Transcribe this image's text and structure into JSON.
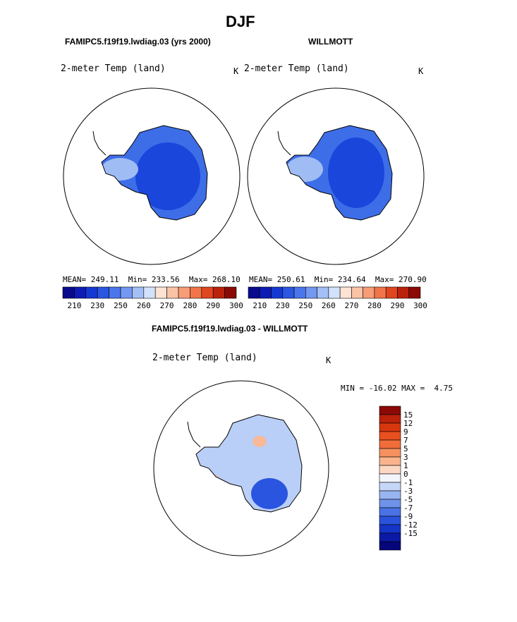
{
  "season": "DJF",
  "panels": {
    "model": {
      "title": "FAMIPC5.f19f19.lwdiag.03 (yrs 2000)",
      "variable": "2-meter Temp (land)",
      "units": "K",
      "stats": {
        "mean_label": "MEAN=",
        "mean": "249.11",
        "min_label": "Min=",
        "min": "233.56",
        "max_label": "Max=",
        "max": "268.10"
      }
    },
    "obs": {
      "title": "WILLMOTT",
      "variable": "2-meter Temp (land)",
      "units": "K",
      "stats": {
        "mean_label": "MEAN=",
        "mean": "250.61",
        "min_label": "Min=",
        "min": "234.64",
        "max_label": "Max=",
        "max": "270.90"
      }
    },
    "diff": {
      "title": "FAMIPC5.f19f19.lwdiag.03 - WILLMOTT",
      "variable": "2-meter Temp (land)",
      "units": "K",
      "stats": {
        "min_label": "MIN =",
        "min": "-16.02",
        "max_label": "MAX =",
        "max": "4.75"
      }
    }
  },
  "colorbar_abs": {
    "colors": [
      "#0a0a8c",
      "#0d1cb4",
      "#1638d2",
      "#2a56e2",
      "#4a76ec",
      "#7398f2",
      "#a3bff6",
      "#d2e2fa",
      "#fde3d3",
      "#fbc3a6",
      "#f79d77",
      "#f17548",
      "#e0461f",
      "#bb220c",
      "#8b0a05"
    ],
    "ticks": [
      "210",
      "230",
      "250",
      "260",
      "270",
      "280",
      "290",
      "300"
    ]
  },
  "colorbar_diff": {
    "colors": [
      "#8b0a05",
      "#bb220c",
      "#d7370f",
      "#e9501f",
      "#f06d3a",
      "#f5925f",
      "#f9b48e",
      "#fcd8c4",
      "#f2f5fb",
      "#c6d6f7",
      "#98b4f1",
      "#6f93eb",
      "#4a72e5",
      "#2b52dc",
      "#1535c8",
      "#0a1aa6",
      "#06067a"
    ],
    "labels": [
      "15",
      "12",
      "9",
      "7",
      "5",
      "3",
      "1",
      "0",
      "-1",
      "-3",
      "-5",
      "-7",
      "-9",
      "-12",
      "-15"
    ]
  },
  "colors": {
    "field_base": "#3d6ee8",
    "field_core": "#1b46db",
    "field_edge": "#9fbdf4",
    "diff_base": "#b9cff7",
    "diff_cold": "#2a55e0",
    "diff_warm": "#f7b99a"
  }
}
